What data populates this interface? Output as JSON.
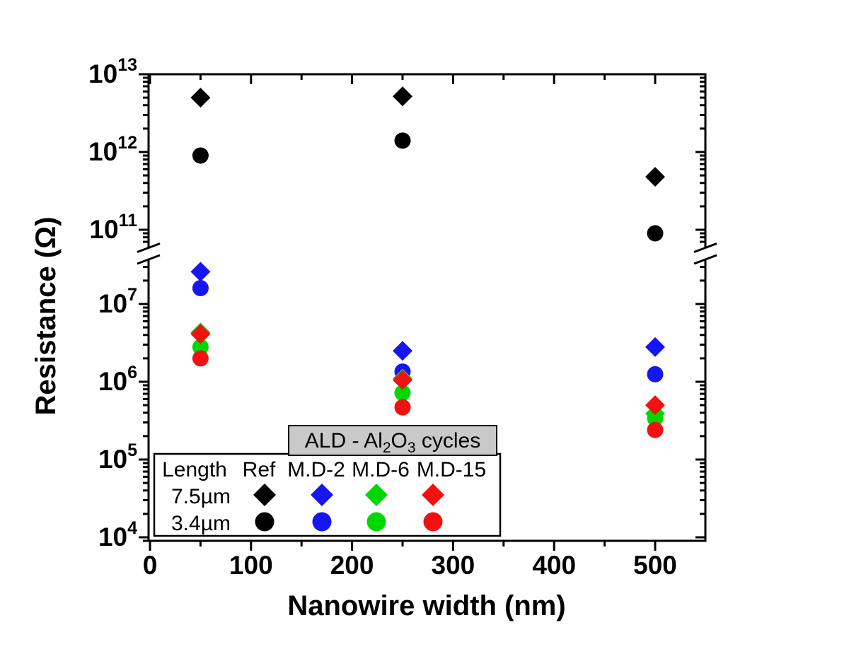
{
  "figure": {
    "background": "#ffffff"
  },
  "chart_data": {
    "type": "scatter",
    "title": "",
    "xlabel": "Nanowire width (nm)",
    "ylabel": "Resistance (Ω)",
    "x_axis": {
      "min": 0,
      "max": 548,
      "major_ticks": [
        0,
        100,
        200,
        300,
        400,
        500
      ],
      "minor_ticks": [
        50,
        150,
        250,
        350,
        450
      ],
      "tick_labels": [
        "0",
        "100",
        "200",
        "300",
        "400",
        "500"
      ]
    },
    "y_axis": {
      "scale": "log",
      "broken": true,
      "break_range": [
        35000000.0,
        65000000000.0
      ],
      "lower_segment": {
        "min": 9000.0,
        "max": 35000000.0,
        "labeled_exponents": [
          7,
          6,
          5,
          4
        ]
      },
      "upper_segment": {
        "min": 65000000000.0,
        "max": 10000000000000.0,
        "labeled_exponents": [
          13,
          12,
          11
        ]
      }
    },
    "x_values_nm": [
      50,
      250,
      500
    ],
    "series": [
      {
        "name": "Ref",
        "length": "7.5µm",
        "marker": "diamond",
        "color": "#000000",
        "x": [
          50,
          250,
          500
        ],
        "y": [
          5000000000000.0,
          5200000000000.0,
          480000000000.0
        ]
      },
      {
        "name": "Ref",
        "length": "3.4µm",
        "marker": "circle",
        "color": "#000000",
        "x": [
          50,
          250,
          500
        ],
        "y": [
          900000000000.0,
          1400000000000.0,
          90000000000.0
        ]
      },
      {
        "name": "M.D-2",
        "length": "7.5µm",
        "marker": "diamond",
        "color": "#1616f0",
        "x": [
          50,
          250,
          500
        ],
        "y": [
          26000000.0,
          2500000.0,
          2800000.0
        ]
      },
      {
        "name": "M.D-2",
        "length": "3.4µm",
        "marker": "circle",
        "color": "#1616f0",
        "x": [
          50,
          250,
          500
        ],
        "y": [
          16000000.0,
          1350000.0,
          1250000.0
        ]
      },
      {
        "name": "M.D-6",
        "length": "7.5µm",
        "marker": "diamond",
        "color": "#00d800",
        "x": [
          50,
          250,
          500
        ],
        "y": [
          4300000.0,
          1100000.0,
          390000.0
        ]
      },
      {
        "name": "M.D-6",
        "length": "3.4µm",
        "marker": "circle",
        "color": "#00d800",
        "x": [
          50,
          250,
          500
        ],
        "y": [
          2800000.0,
          720000.0,
          340000.0
        ]
      },
      {
        "name": "M.D-15",
        "length": "7.5µm",
        "marker": "diamond",
        "color": "#f21111",
        "x": [
          50,
          250,
          500
        ],
        "y": [
          4100000.0,
          1050000.0,
          500000.0
        ]
      },
      {
        "name": "M.D-15",
        "length": "3.4µm",
        "marker": "circle",
        "color": "#f21111",
        "x": [
          50,
          250,
          500
        ],
        "y": [
          2000000.0,
          470000.0,
          240000.0
        ]
      }
    ]
  },
  "legend": {
    "title_parts": [
      {
        "t": "ALD - Al"
      },
      {
        "t": "2",
        "sub": true
      },
      {
        "t": "O"
      },
      {
        "t": "3",
        "sub": true
      },
      {
        "t": " cycles"
      }
    ],
    "title_bg": "#c9c9c9",
    "header": [
      "Length",
      "Ref",
      "M.D-2",
      "M.D-6",
      "M.D-15"
    ],
    "rows": [
      {
        "label": "7.5µm",
        "marker": "diamond"
      },
      {
        "label": "3.4µm",
        "marker": "circle"
      }
    ]
  }
}
